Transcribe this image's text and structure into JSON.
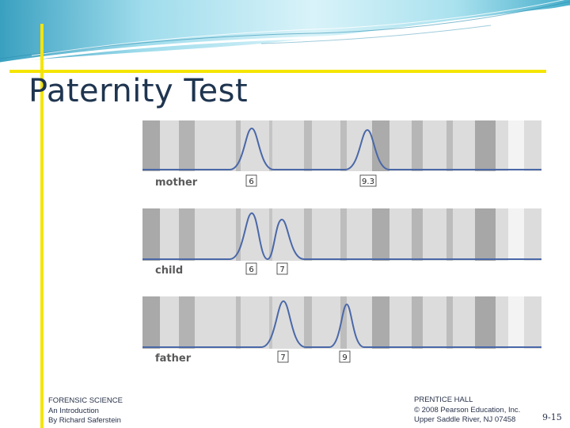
{
  "slide": {
    "title": "Paternity Test",
    "footer_left": [
      "FORENSIC SCIENCE",
      "An Introduction",
      "By Richard Saferstein"
    ],
    "footer_right": [
      "PRENTICE HALL",
      "© 2008 Pearson Education, Inc.",
      "Upper Saddle River, NJ 07458"
    ],
    "page_number": "9-15"
  },
  "colors": {
    "accent_yellow": "#f5e400",
    "trace_blue": "#4a68a8",
    "title_navy": "#1f3550",
    "banner_light": "#cdeef6",
    "banner_dark": "#3aa5c4"
  },
  "profiles": [
    {
      "label": "mother",
      "peaks": [
        "6",
        "9.3"
      ]
    },
    {
      "label": "child",
      "peaks": [
        "6",
        "7"
      ]
    },
    {
      "label": "father",
      "peaks": [
        "7",
        "9"
      ]
    }
  ]
}
